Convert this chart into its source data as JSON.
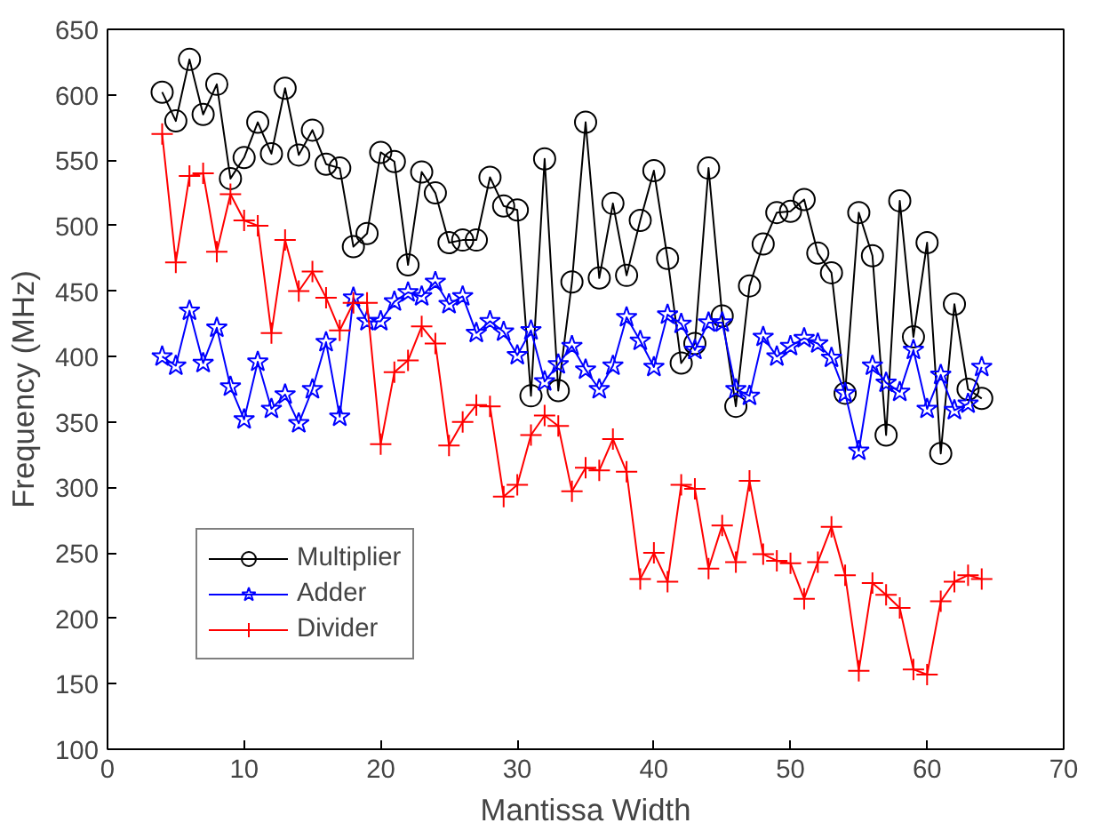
{
  "chart_data": {
    "type": "line",
    "xlabel": "Mantissa Width",
    "ylabel": "Frequency (MHz)",
    "x": [
      4,
      5,
      6,
      7,
      8,
      9,
      10,
      11,
      12,
      13,
      14,
      15,
      16,
      17,
      18,
      19,
      20,
      21,
      22,
      23,
      24,
      25,
      26,
      27,
      28,
      29,
      30,
      31,
      32,
      33,
      34,
      35,
      36,
      37,
      38,
      39,
      40,
      41,
      42,
      43,
      44,
      45,
      46,
      47,
      48,
      49,
      50,
      51,
      52,
      53,
      54,
      55,
      56,
      57,
      58,
      59,
      60,
      61,
      62,
      63,
      64
    ],
    "xlim": [
      0,
      70
    ],
    "xticks": [
      0,
      10,
      20,
      30,
      40,
      50,
      60,
      70
    ],
    "ylim": [
      100,
      650
    ],
    "yticks": [
      100,
      150,
      200,
      250,
      300,
      350,
      400,
      450,
      500,
      550,
      600,
      650
    ],
    "grid": false,
    "legend": "bottom left",
    "series": [
      {
        "name": "Multiplier",
        "color": "#000000",
        "marker": "circle",
        "values": [
          602,
          580,
          627,
          585,
          608,
          536,
          552,
          579,
          555,
          605,
          554,
          573,
          547,
          544,
          484,
          494,
          556,
          549,
          470,
          541,
          525,
          487,
          489,
          489,
          537,
          515,
          512,
          370,
          551,
          374,
          457,
          579,
          460,
          517,
          462,
          504,
          542,
          475,
          395,
          410,
          544,
          431,
          362,
          454,
          486,
          510,
          511,
          520,
          479,
          464,
          372,
          510,
          477,
          340,
          519,
          415,
          487,
          326,
          440,
          375,
          368
        ]
      },
      {
        "name": "Adder",
        "color": "#0000ff",
        "marker": "star",
        "values": [
          400,
          393,
          435,
          395,
          422,
          377,
          352,
          396,
          360,
          371,
          349,
          375,
          411,
          354,
          445,
          427,
          427,
          442,
          449,
          446,
          457,
          440,
          446,
          418,
          427,
          419,
          401,
          420,
          381,
          394,
          408,
          390,
          375,
          393,
          430,
          412,
          392,
          432,
          425,
          405,
          426,
          426,
          375,
          370,
          415,
          400,
          408,
          414,
          410,
          399,
          372,
          328,
          393,
          380,
          373,
          405,
          360,
          386,
          359,
          364,
          392
        ]
      },
      {
        "name": "Divider",
        "color": "#ff0000",
        "marker": "cross",
        "values": [
          570,
          472,
          538,
          540,
          480,
          524,
          504,
          500,
          418,
          489,
          450,
          465,
          445,
          420,
          441,
          441,
          333,
          388,
          397,
          423,
          410,
          332,
          350,
          363,
          362,
          293,
          302,
          340,
          355,
          347,
          297,
          315,
          313,
          337,
          312,
          230,
          250,
          228,
          302,
          299,
          238,
          271,
          243,
          305,
          249,
          244,
          242,
          215,
          243,
          270,
          233,
          160,
          227,
          218,
          208,
          161,
          157,
          213,
          228,
          233,
          230
        ]
      }
    ]
  }
}
